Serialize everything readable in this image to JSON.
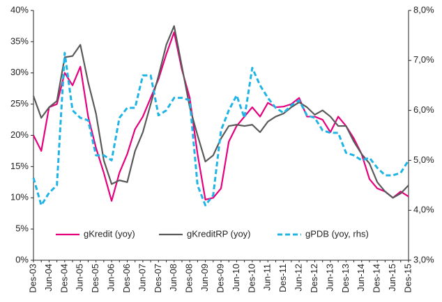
{
  "chart_data": {
    "type": "line",
    "categories": [
      "Des-03",
      null,
      "Jun-04",
      null,
      "Des-04",
      null,
      "Jun-05",
      null,
      "Des-05",
      null,
      "Jun-06",
      null,
      "Des-06",
      null,
      "Jun-07",
      null,
      "Des-07",
      null,
      "Jun-08",
      null,
      "Des-08",
      null,
      "Jun-09",
      null,
      "Des-09",
      null,
      "Jun-10",
      null,
      "Des-10",
      null,
      "Jun-11",
      null,
      "Des-11",
      null,
      "Jun-12",
      null,
      "Des-12",
      null,
      "Jun-13",
      null,
      "Des-13",
      null,
      "Jun-14",
      null,
      "Des-14",
      null,
      "Jun-15",
      null,
      "Des-15"
    ],
    "ylim": [
      0,
      40
    ],
    "yticks": [
      {
        "value": 0,
        "label": "0%"
      },
      {
        "value": 5,
        "label": "5%"
      },
      {
        "value": 10,
        "label": "10%"
      },
      {
        "value": 15,
        "label": "15%"
      },
      {
        "value": 20,
        "label": "20%"
      },
      {
        "value": 25,
        "label": "25%"
      },
      {
        "value": 30,
        "label": "30%"
      },
      {
        "value": 35,
        "label": "35%"
      },
      {
        "value": 40,
        "label": "40%"
      }
    ],
    "y2lim": [
      3,
      8
    ],
    "y2ticks": [
      {
        "value": 3,
        "label": "3,0%"
      },
      {
        "value": 4,
        "label": "4,0%"
      },
      {
        "value": 5,
        "label": "5,0%"
      },
      {
        "value": 6,
        "label": "6,0%"
      },
      {
        "value": 7,
        "label": "7,0%"
      },
      {
        "value": 8,
        "label": "8,0%"
      }
    ],
    "legend": "lower center",
    "series": [
      {
        "name": "gKredit (yoy)",
        "color": "#e6007e",
        "dashed": false,
        "values": [
          20,
          17.5,
          24.5,
          25,
          30,
          28,
          31,
          23,
          18,
          14,
          9.5,
          14,
          17,
          21,
          23,
          26,
          29,
          33,
          36.5,
          30.5,
          26,
          17,
          9.7,
          10,
          11.5,
          19,
          21.5,
          23,
          24.5,
          23,
          25.2,
          24.5,
          24.6,
          25,
          26,
          23,
          23,
          22.5,
          20.5,
          23,
          21.5,
          19.5,
          17,
          13,
          11.5,
          11,
          10,
          11,
          10.2
        ]
      },
      {
        "name": "gKreditRP (yoy)",
        "color": "#595959",
        "dashed": false,
        "values": [
          26.3,
          22.8,
          24.5,
          25.5,
          32.5,
          32.7,
          34.5,
          28.5,
          23.5,
          16,
          12.2,
          12.8,
          12.5,
          17.5,
          20.5,
          25,
          29.5,
          34.5,
          37.5,
          31,
          24.5,
          20,
          15.8,
          16.8,
          19.5,
          21.5,
          21.7,
          21.5,
          21.7,
          20.5,
          22.2,
          23,
          23.5,
          24.5,
          25.3,
          24.5,
          23.3,
          24,
          23,
          21.5,
          21.5,
          19,
          17,
          15.5,
          12.5,
          11,
          10,
          10.7,
          12
        ]
      },
      {
        "name": "gPDB (yoy, rhs)",
        "color": "#1fb4e6",
        "dashed": true,
        "axis": "y2",
        "values": [
          4.65,
          4.1,
          4.35,
          4.5,
          7.15,
          6,
          5.85,
          5.8,
          5.1,
          5.1,
          5.0,
          5.85,
          6.05,
          6.05,
          6.7,
          6.7,
          5.9,
          6.0,
          6.25,
          6.25,
          6.2,
          4.5,
          4.1,
          4.3,
          5.6,
          6.0,
          6.3,
          5.85,
          6.85,
          6.5,
          6.25,
          6.05,
          5.95,
          6.1,
          6.2,
          5.9,
          5.85,
          5.6,
          5.55,
          5.55,
          5.15,
          5.1,
          5.0,
          5.05,
          4.85,
          4.7,
          4.7,
          4.75,
          5.0
        ]
      }
    ]
  }
}
